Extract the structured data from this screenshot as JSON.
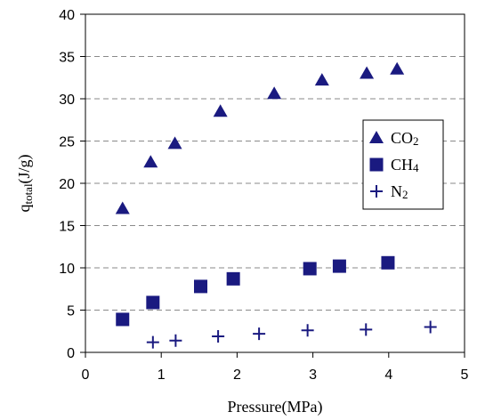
{
  "chart_data": {
    "type": "scatter",
    "xlabel": "Pressure(MPa)",
    "ylabel_main": "q",
    "ylabel_sub": "total",
    "ylabel_unit": "(J/g)",
    "xlim": [
      0,
      5
    ],
    "ylim": [
      0,
      40
    ],
    "xticks": [
      0,
      1,
      2,
      3,
      4,
      5
    ],
    "yticks": [
      0,
      5,
      10,
      15,
      20,
      25,
      30,
      35,
      40
    ],
    "grid": "horizontal dashed",
    "legend_position": "right",
    "marker_color": "#1a1a80",
    "series": [
      {
        "name": "CO2",
        "label_main": "CO",
        "label_sub": "2",
        "marker": "triangle",
        "x": [
          0.49,
          0.86,
          1.18,
          1.78,
          2.49,
          3.12,
          3.71,
          4.11
        ],
        "y": [
          17.0,
          22.5,
          24.7,
          28.5,
          30.6,
          32.2,
          33.0,
          33.5
        ]
      },
      {
        "name": "CH4",
        "label_main": "CH",
        "label_sub": "4",
        "marker": "square",
        "x": [
          0.49,
          0.89,
          1.52,
          1.95,
          2.96,
          3.35,
          3.99
        ],
        "y": [
          3.9,
          5.9,
          7.8,
          8.7,
          9.9,
          10.2,
          10.6
        ]
      },
      {
        "name": "N2",
        "label_main": "N",
        "label_sub": "2",
        "marker": "plus",
        "x": [
          0.89,
          1.19,
          1.75,
          2.29,
          2.93,
          3.7,
          4.55
        ],
        "y": [
          1.2,
          1.4,
          1.9,
          2.2,
          2.6,
          2.7,
          3.0
        ]
      }
    ]
  }
}
